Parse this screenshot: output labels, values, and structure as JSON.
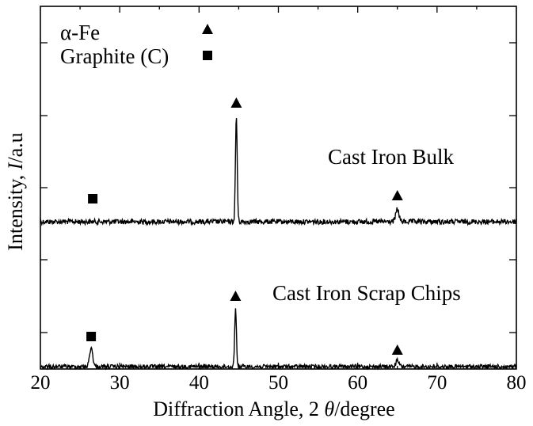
{
  "chart_data": {
    "type": "line",
    "title": "",
    "xlabel_prefix": "Diffraction Angle, 2 ",
    "xlabel_symbol": "θ",
    "xlabel_suffix": "/degree",
    "ylabel_prefix": "Intensity, ",
    "ylabel_symbol": "I",
    "ylabel_suffix": "/a.u",
    "xlim": [
      20,
      80
    ],
    "xticks": [
      "20",
      "30",
      "40",
      "50",
      "60",
      "70",
      "80"
    ],
    "yticks_labeled": false,
    "grid": false,
    "legend": {
      "placement": "top-left",
      "entries": [
        {
          "label": "α-Fe",
          "marker": "triangle"
        },
        {
          "label": "Graphite (C)",
          "marker": "square"
        }
      ]
    },
    "series": [
      {
        "name": "Cast Iron Bulk",
        "peaks": [
          {
            "x": 44.7,
            "rel_height": 1.0,
            "phase": "α-Fe"
          },
          {
            "x": 65.0,
            "rel_height": 0.12,
            "phase": "α-Fe"
          },
          {
            "x": 26.6,
            "rel_height": 0.0,
            "phase": "Graphite (C)"
          }
        ]
      },
      {
        "name": "Cast Iron Scrap Chips",
        "peaks": [
          {
            "x": 44.6,
            "rel_height": 0.5,
            "phase": "α-Fe"
          },
          {
            "x": 65.0,
            "rel_height": 0.05,
            "phase": "α-Fe"
          },
          {
            "x": 26.4,
            "rel_height": 0.16,
            "phase": "Graphite (C)"
          }
        ]
      }
    ]
  }
}
